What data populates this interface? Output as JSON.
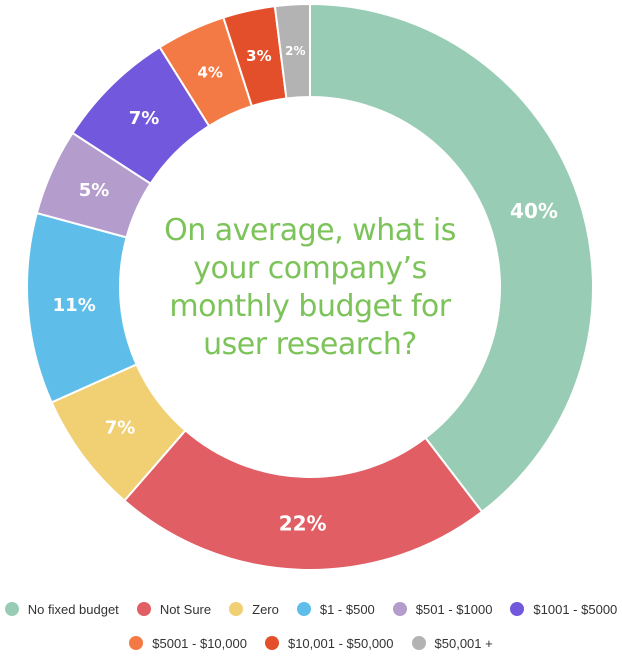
{
  "chart_data": {
    "type": "pie",
    "subtype": "donut",
    "title": "On average, what is your company’s monthly budget for user research?",
    "categories": [
      "No fixed budget",
      "Not Sure",
      "Zero",
      "$1 - $500",
      "$501 - $1000",
      "$1001 - $5000",
      "$5001 - $10,000",
      "$10,001 - $50,000",
      "$50,001 +"
    ],
    "values": [
      40,
      22,
      7,
      11,
      5,
      7,
      4,
      3,
      2
    ],
    "data_labels": [
      "40%",
      "22%",
      "7%",
      "11%",
      "5%",
      "7%",
      "4%",
      "3%",
      "2%"
    ],
    "colors": [
      "#98ccb4",
      "#e05e64",
      "#f0d073",
      "#5fbde9",
      "#b49ccd",
      "#7158dc",
      "#f47a45",
      "#e34f2a",
      "#b3b3b3"
    ],
    "legend_position": "bottom"
  },
  "legend": {
    "rows": [
      [
        0,
        1,
        2,
        3,
        4,
        5
      ],
      [
        6,
        7,
        8
      ]
    ]
  }
}
